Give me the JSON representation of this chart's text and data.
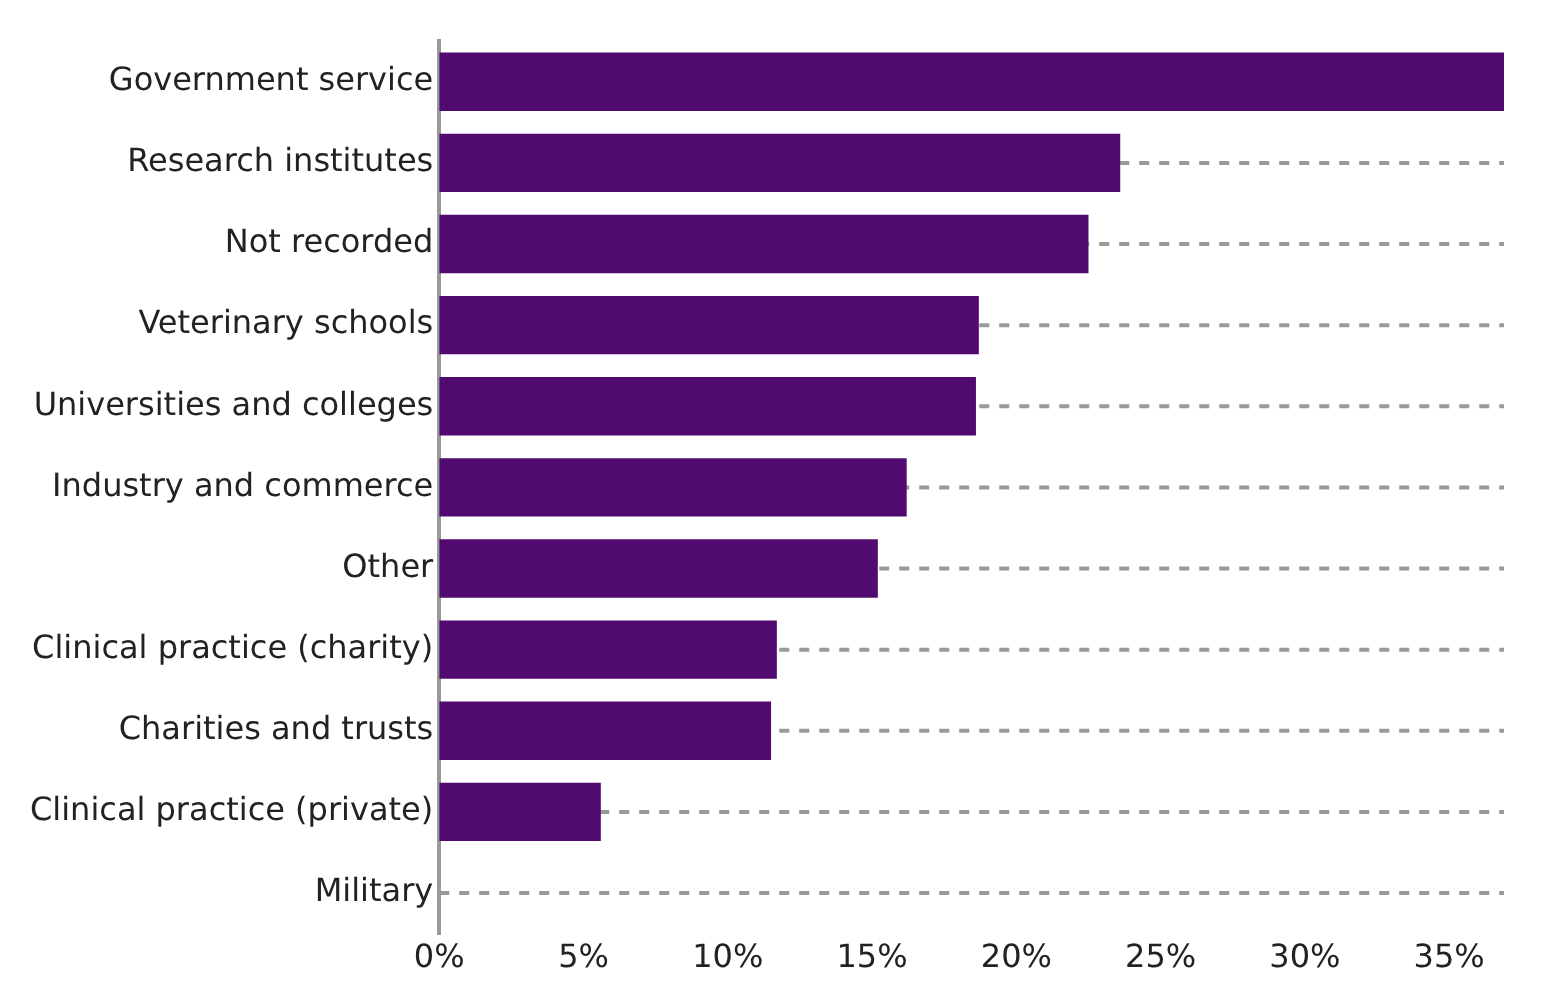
{
  "chart_data": {
    "type": "bar",
    "orientation": "horizontal",
    "categories": [
      "Government service",
      "Research institutes",
      "Not recorded",
      "Veterinary schools",
      "Universities and colleges",
      "Industry and commerce",
      "Other",
      "Clinical practice (charity)",
      "Charities and trusts",
      "Clinical practice (private)",
      "Military"
    ],
    "values": [
      36.9,
      23.6,
      22.5,
      18.7,
      18.6,
      16.2,
      15.2,
      11.7,
      11.5,
      5.6,
      0
    ],
    "color": "#510a70",
    "xlim": [
      0,
      36.9
    ],
    "xticks": [
      {
        "value": 0,
        "label": "0%"
      },
      {
        "value": 5,
        "label": "5%"
      },
      {
        "value": 10,
        "label": "10%"
      },
      {
        "value": 15,
        "label": "15%"
      },
      {
        "value": 20,
        "label": "20%"
      },
      {
        "value": 25,
        "label": "25%"
      },
      {
        "value": 30,
        "label": "30%"
      },
      {
        "value": 35,
        "label": "35%"
      }
    ],
    "grid": "y",
    "line_style": "dashed",
    "legend": false
  }
}
